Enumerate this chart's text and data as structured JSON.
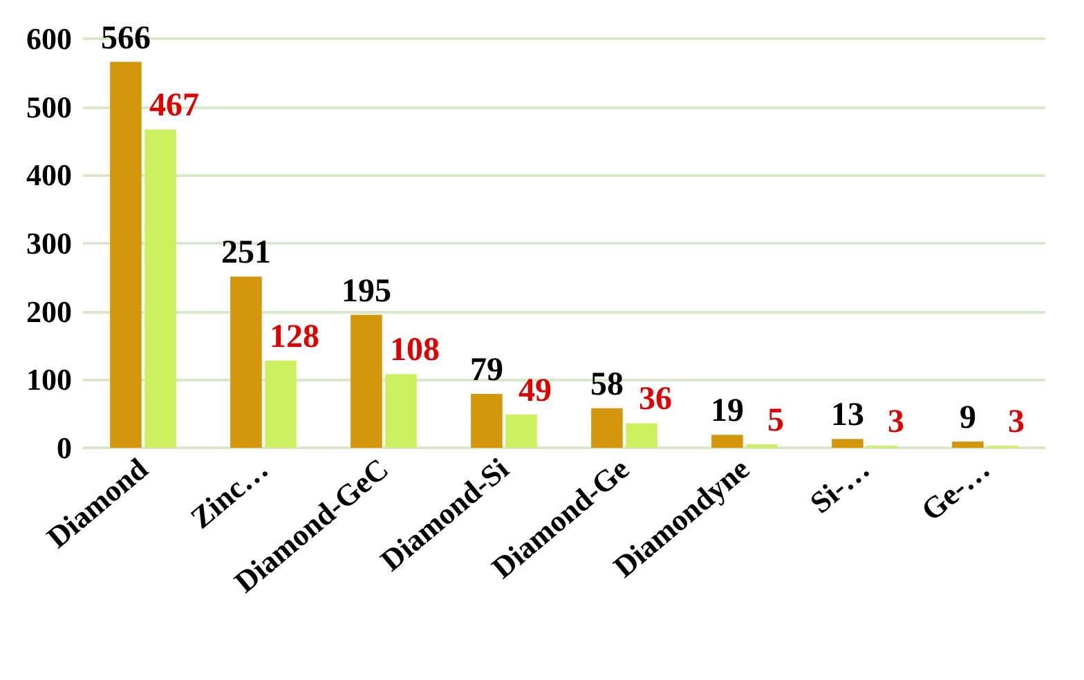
{
  "chart_data": {
    "type": "bar",
    "categories": [
      "Diamond",
      "Zinc…",
      "Diamond-GeC",
      "Diamond-Si",
      "Diamond-Ge",
      "Diamondyne",
      "Si-…",
      "Ge-…"
    ],
    "series": [
      {
        "color": "#d4960a",
        "values": [
          566,
          251,
          195,
          79,
          58,
          19,
          13,
          9
        ]
      },
      {
        "color": "#ccf060",
        "values": [
          467,
          128,
          108,
          49,
          36,
          5,
          3,
          3
        ]
      }
    ],
    "ylim": [
      0,
      600
    ],
    "yticks": [
      0,
      100,
      200,
      300,
      400,
      500,
      600
    ],
    "grid": "y",
    "data_labels": true
  }
}
